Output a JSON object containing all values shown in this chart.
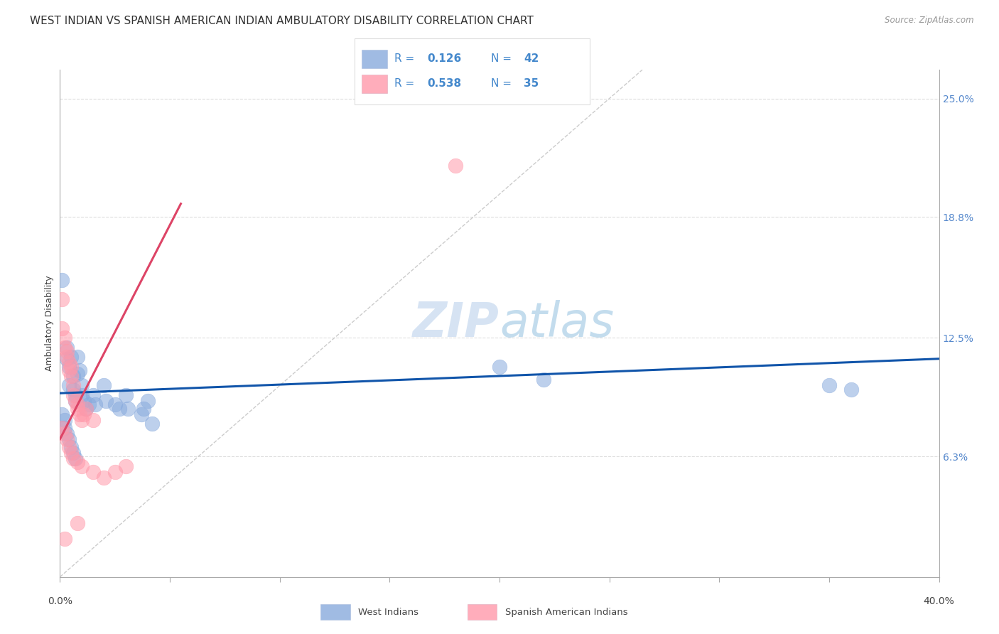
{
  "title": "WEST INDIAN VS SPANISH AMERICAN INDIAN AMBULATORY DISABILITY CORRELATION CHART",
  "source": "Source: ZipAtlas.com",
  "ylabel": "Ambulatory Disability",
  "xlim": [
    0.0,
    0.4
  ],
  "ylim": [
    -0.02,
    0.275
  ],
  "plot_ylim": [
    0.0,
    0.265
  ],
  "ytick_positions": [
    0.063,
    0.125,
    0.188,
    0.25
  ],
  "ytick_labels": [
    "6.3%",
    "12.5%",
    "18.8%",
    "25.0%"
  ],
  "blue_color": "#88AADD",
  "pink_color": "#FF99AA",
  "blue_line_color": "#1155AA",
  "pink_line_color": "#DD4466",
  "blue_scatter": [
    [
      0.001,
      0.155
    ],
    [
      0.003,
      0.12
    ],
    [
      0.003,
      0.114
    ],
    [
      0.004,
      0.11
    ],
    [
      0.004,
      0.1
    ],
    [
      0.005,
      0.115
    ],
    [
      0.006,
      0.105
    ],
    [
      0.006,
      0.098
    ],
    [
      0.007,
      0.095
    ],
    [
      0.007,
      0.092
    ],
    [
      0.008,
      0.115
    ],
    [
      0.008,
      0.106
    ],
    [
      0.009,
      0.108
    ],
    [
      0.01,
      0.1
    ],
    [
      0.01,
      0.095
    ],
    [
      0.011,
      0.092
    ],
    [
      0.012,
      0.088
    ],
    [
      0.013,
      0.09
    ],
    [
      0.015,
      0.095
    ],
    [
      0.016,
      0.09
    ],
    [
      0.02,
      0.1
    ],
    [
      0.021,
      0.092
    ],
    [
      0.025,
      0.09
    ],
    [
      0.027,
      0.088
    ],
    [
      0.03,
      0.095
    ],
    [
      0.031,
      0.088
    ],
    [
      0.037,
      0.085
    ],
    [
      0.038,
      0.088
    ],
    [
      0.04,
      0.092
    ],
    [
      0.042,
      0.08
    ],
    [
      0.001,
      0.085
    ],
    [
      0.002,
      0.082
    ],
    [
      0.002,
      0.078
    ],
    [
      0.003,
      0.075
    ],
    [
      0.004,
      0.072
    ],
    [
      0.005,
      0.068
    ],
    [
      0.006,
      0.065
    ],
    [
      0.007,
      0.062
    ],
    [
      0.2,
      0.11
    ],
    [
      0.22,
      0.103
    ],
    [
      0.35,
      0.1
    ],
    [
      0.36,
      0.098
    ]
  ],
  "pink_scatter": [
    [
      0.001,
      0.145
    ],
    [
      0.001,
      0.13
    ],
    [
      0.002,
      0.125
    ],
    [
      0.002,
      0.12
    ],
    [
      0.003,
      0.115
    ],
    [
      0.003,
      0.118
    ],
    [
      0.004,
      0.108
    ],
    [
      0.004,
      0.112
    ],
    [
      0.005,
      0.11
    ],
    [
      0.005,
      0.105
    ],
    [
      0.006,
      0.1
    ],
    [
      0.006,
      0.095
    ],
    [
      0.007,
      0.092
    ],
    [
      0.008,
      0.09
    ],
    [
      0.008,
      0.088
    ],
    [
      0.009,
      0.085
    ],
    [
      0.01,
      0.082
    ],
    [
      0.011,
      0.085
    ],
    [
      0.012,
      0.088
    ],
    [
      0.015,
      0.082
    ],
    [
      0.001,
      0.078
    ],
    [
      0.002,
      0.075
    ],
    [
      0.003,
      0.072
    ],
    [
      0.004,
      0.068
    ],
    [
      0.005,
      0.065
    ],
    [
      0.006,
      0.062
    ],
    [
      0.008,
      0.06
    ],
    [
      0.01,
      0.058
    ],
    [
      0.015,
      0.055
    ],
    [
      0.02,
      0.052
    ],
    [
      0.025,
      0.055
    ],
    [
      0.03,
      0.058
    ],
    [
      0.008,
      0.028
    ],
    [
      0.002,
      0.02
    ],
    [
      0.18,
      0.215
    ]
  ],
  "blue_line_x": [
    0.0,
    0.4
  ],
  "blue_line_y": [
    0.096,
    0.114
  ],
  "pink_line_x": [
    0.0,
    0.055
  ],
  "pink_line_y": [
    0.072,
    0.195
  ],
  "diag_color": "#CCCCCC",
  "grid_color": "#DDDDDD",
  "background_color": "#FFFFFF",
  "watermark_zip": "ZIP",
  "watermark_atlas": "atlas",
  "title_fontsize": 11,
  "axis_label_fontsize": 9,
  "tick_fontsize": 10,
  "legend_fontsize": 11
}
